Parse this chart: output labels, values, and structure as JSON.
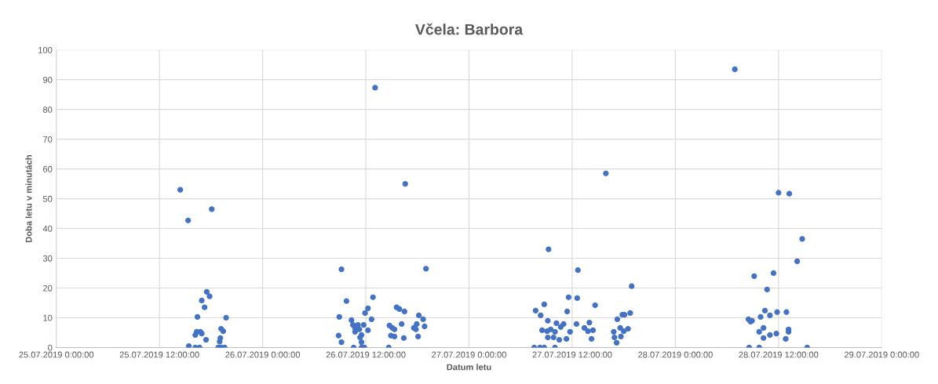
{
  "chart_data": {
    "type": "scatter",
    "title": "Včela: Barbora",
    "xlabel": "Datum letu",
    "ylabel": "Doba letu v minutách",
    "marker": "circle",
    "grid": true,
    "xlim": [
      "2019-07-25T00:00",
      "2019-07-29T00:00"
    ],
    "xticks": [
      {
        "value": "2019-07-25T00:00",
        "label": "25.07.2019 0:00:00"
      },
      {
        "value": "2019-07-25T12:00",
        "label": "25.07.2019 12:00:00"
      },
      {
        "value": "2019-07-26T00:00",
        "label": "26.07.2019 0:00:00"
      },
      {
        "value": "2019-07-26T12:00",
        "label": "26.07.2019 12:00:00"
      },
      {
        "value": "2019-07-27T00:00",
        "label": "27.07.2019 0:00:00"
      },
      {
        "value": "2019-07-27T12:00",
        "label": "27.07.2019 12:00:00"
      },
      {
        "value": "2019-07-28T00:00",
        "label": "28.07.2019 0:00:00"
      },
      {
        "value": "2019-07-28T12:00",
        "label": "28.07.2019 12:00:00"
      },
      {
        "value": "2019-07-29T00:00",
        "label": "29.07.2019 0:00:00"
      }
    ],
    "ylim": [
      0,
      100
    ],
    "yticks": [
      0,
      10,
      20,
      30,
      40,
      50,
      60,
      70,
      80,
      90,
      100
    ],
    "series": [
      {
        "color": "#4472c4",
        "x": [
          "2019-07-25T14:25",
          "2019-07-25T15:20",
          "2019-07-25T18:05",
          "2019-07-25T17:30",
          "2019-07-25T17:50",
          "2019-07-25T16:55",
          "2019-07-25T17:15",
          "2019-07-25T16:25",
          "2019-07-25T19:45",
          "2019-07-25T15:25",
          "2019-07-25T16:10",
          "2019-07-25T16:40",
          "2019-07-25T17:25",
          "2019-07-25T16:10",
          "2019-07-25T16:20",
          "2019-07-25T16:45",
          "2019-07-25T16:55",
          "2019-07-25T19:10",
          "2019-07-25T19:00",
          "2019-07-25T19:05",
          "2019-07-25T18:50",
          "2019-07-25T19:10",
          "2019-07-25T19:35",
          "2019-07-25T19:25",
          "2019-07-26T09:10",
          "2019-07-26T13:05",
          "2019-07-26T16:35",
          "2019-07-26T19:00",
          "2019-07-26T09:45",
          "2019-07-26T12:50",
          "2019-07-26T08:55",
          "2019-07-26T10:20",
          "2019-07-26T12:15",
          "2019-07-26T11:55",
          "2019-07-26T12:40",
          "2019-07-26T10:30",
          "2019-07-26T11:05",
          "2019-07-26T11:45",
          "2019-07-26T10:45",
          "2019-07-26T11:15",
          "2019-07-26T12:15",
          "2019-07-26T10:45",
          "2019-07-26T11:30",
          "2019-07-26T11:20",
          "2019-07-26T08:50",
          "2019-07-26T09:10",
          "2019-07-26T11:30",
          "2019-07-26T10:35",
          "2019-07-26T11:30",
          "2019-07-26T11:50",
          "2019-07-26T14:40",
          "2019-07-26T15:35",
          "2019-07-26T15:55",
          "2019-07-26T16:30",
          "2019-07-26T16:10",
          "2019-07-26T14:45",
          "2019-07-26T15:05",
          "2019-07-26T15:20",
          "2019-07-26T14:55",
          "2019-07-26T15:20",
          "2019-07-26T16:25",
          "2019-07-26T18:10",
          "2019-07-26T18:40",
          "2019-07-26T17:55",
          "2019-07-26T18:50",
          "2019-07-26T17:35",
          "2019-07-26T17:50",
          "2019-07-26T18:05",
          "2019-07-27T18:55",
          "2019-07-27T11:35",
          "2019-07-27T12:35",
          "2019-07-27T08:45",
          "2019-07-27T14:40",
          "2019-07-27T07:45",
          "2019-07-27T08:20",
          "2019-07-27T11:25",
          "2019-07-27T17:50",
          "2019-07-27T18:05",
          "2019-07-27T18:45",
          "2019-07-27T09:10",
          "2019-07-27T10:10",
          "2019-07-27T11:00",
          "2019-07-27T12:30",
          "2019-07-27T14:00",
          "2019-07-27T17:15",
          "2019-07-27T08:30",
          "2019-07-27T09:05",
          "2019-07-27T09:30",
          "2019-07-27T10:00",
          "2019-07-27T10:40",
          "2019-07-27T11:45",
          "2019-07-27T13:25",
          "2019-07-27T13:50",
          "2019-07-27T14:25",
          "2019-07-27T09:10",
          "2019-07-27T09:50",
          "2019-07-27T10:30",
          "2019-07-27T11:20",
          "2019-07-27T14:15",
          "2019-07-27T16:50",
          "2019-07-27T17:35",
          "2019-07-27T18:00",
          "2019-07-27T18:30",
          "2019-07-27T16:55",
          "2019-07-27T17:40",
          "2019-07-27T17:10",
          "2019-07-27T07:35",
          "2019-07-27T08:15",
          "2019-07-27T08:45",
          "2019-07-27T10:00",
          "2019-07-27T09:15",
          "2019-07-27T12:40",
          "2019-07-27T15:55",
          "2019-07-28T10:40",
          "2019-07-28T10:25",
          "2019-07-28T11:00",
          "2019-07-28T11:50",
          "2019-07-28T12:55",
          "2019-07-28T09:55",
          "2019-07-28T08:45",
          "2019-07-28T08:55",
          "2019-07-28T09:45",
          "2019-07-28T10:15",
          "2019-07-28T11:00",
          "2019-07-28T11:45",
          "2019-07-28T13:10",
          "2019-07-28T13:10",
          "2019-07-28T10:15",
          "2019-07-28T12:50",
          "2019-07-28T08:35",
          "2019-07-28T09:45",
          "2019-07-28T15:20",
          "2019-07-28T06:55",
          "2019-07-28T09:10",
          "2019-07-28T11:25",
          "2019-07-28T12:00",
          "2019-07-28T13:15",
          "2019-07-28T14:45",
          "2019-07-28T14:10",
          "2019-07-28T08:30"
        ],
        "values": [
          53,
          42.7,
          46.5,
          18.7,
          17.2,
          15.8,
          13.5,
          10.3,
          10,
          0.5,
          0,
          0,
          2.6,
          4.2,
          5.3,
          5.3,
          4.7,
          6.3,
          2,
          3.2,
          0,
          0,
          0,
          5.5,
          26.3,
          87.3,
          55,
          26.5,
          15.6,
          16.9,
          10.3,
          9.2,
          13.2,
          11.6,
          9.5,
          7.6,
          7.6,
          7.6,
          6.6,
          6.1,
          5.8,
          5.3,
          4.2,
          3.4,
          4,
          1.8,
          1.8,
          0,
          0,
          0,
          0,
          13.5,
          12.9,
          12.1,
          7.9,
          7.4,
          6.6,
          6.1,
          4,
          3.7,
          3.2,
          10.8,
          9.5,
          7.9,
          7.1,
          6.6,
          6.1,
          3.7,
          20.6,
          16.9,
          16.6,
          14.5,
          14.2,
          12.4,
          10.8,
          12.1,
          11,
          11,
          11.6,
          9,
          8.2,
          7.9,
          7.9,
          8.4,
          9.5,
          5.8,
          5.5,
          6.1,
          5.3,
          6.9,
          5.3,
          6.6,
          5.5,
          5.8,
          3.4,
          3.4,
          2.6,
          2.9,
          2.9,
          5.3,
          6.6,
          5.5,
          6.3,
          3.4,
          3.7,
          1.6,
          0,
          0,
          0,
          0,
          33,
          26,
          58.5,
          19.5,
          12.4,
          10.8,
          11.9,
          11.9,
          10.3,
          8.7,
          9,
          5.3,
          6.6,
          4.2,
          4.7,
          6.1,
          5.3,
          3.2,
          2.9,
          0,
          0,
          0,
          93.5,
          24,
          25,
          52,
          51.7,
          36.5,
          29,
          9.5
        ]
      }
    ]
  }
}
